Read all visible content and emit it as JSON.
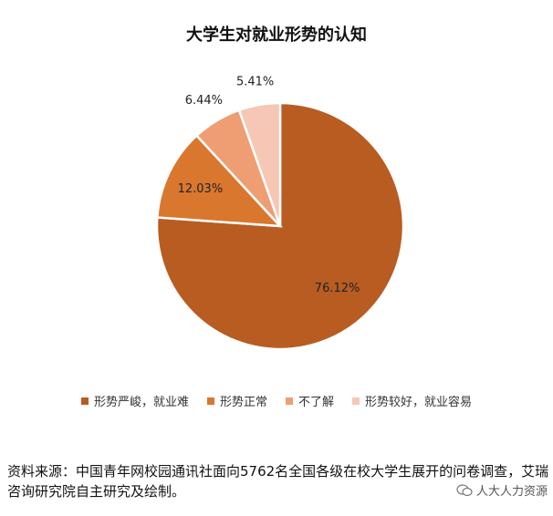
{
  "chart_data": {
    "type": "pie",
    "title": "大学生对就业形势的认知",
    "slices": [
      {
        "label": "形势严峻，就业难",
        "value": 76.12,
        "display": "76.12%",
        "color": "#B85C22"
      },
      {
        "label": "形势正常",
        "value": 12.03,
        "display": "12.03%",
        "color": "#D9772F"
      },
      {
        "label": "不了解",
        "value": 6.44,
        "display": "6.44%",
        "color": "#EE9E72"
      },
      {
        "label": "形势较好，就业容易",
        "value": 5.41,
        "display": "5.41%",
        "color": "#F5C7B4"
      }
    ],
    "legend_position": "bottom"
  },
  "source_text": "资料来源：中国青年网校园通讯社面向5762名全国各级在校大学生展开的问卷调查，艾瑞咨询研究院自主研究及绘制。",
  "watermark": {
    "text": "人大人力资源",
    "icon": "wechat-icon"
  }
}
